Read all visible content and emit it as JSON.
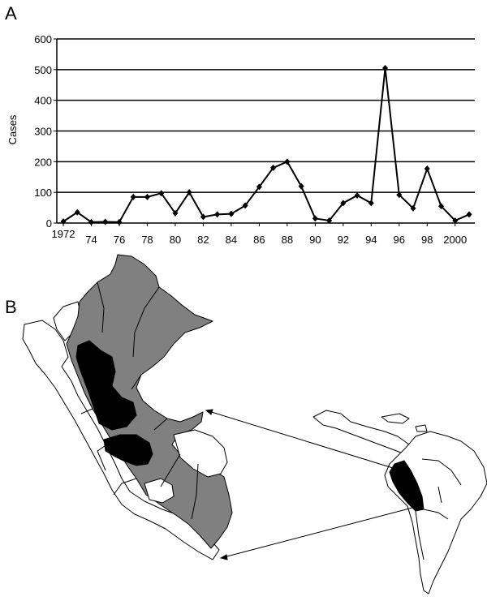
{
  "panels": {
    "a": "A",
    "b": "B"
  },
  "chart_data": {
    "type": "line",
    "title": "",
    "xlabel": "",
    "ylabel": "Cases",
    "ylim": [
      0,
      600
    ],
    "yticks": [
      0,
      100,
      200,
      300,
      400,
      500,
      600
    ],
    "xticks": [
      {
        "year": 1972,
        "label": "1972"
      },
      {
        "year": 1974,
        "label": "74"
      },
      {
        "year": 1976,
        "label": "76"
      },
      {
        "year": 1978,
        "label": "78"
      },
      {
        "year": 1980,
        "label": "80"
      },
      {
        "year": 1982,
        "label": "82"
      },
      {
        "year": 1984,
        "label": "84"
      },
      {
        "year": 1986,
        "label": "86"
      },
      {
        "year": 1988,
        "label": "88"
      },
      {
        "year": 1990,
        "label": "90"
      },
      {
        "year": 1992,
        "label": "92"
      },
      {
        "year": 1994,
        "label": "94"
      },
      {
        "year": 1996,
        "label": "96"
      },
      {
        "year": 1998,
        "label": "98"
      },
      {
        "year": 2000,
        "label": "2000"
      }
    ],
    "grid": "horizontal",
    "legend": "none",
    "series": [
      {
        "x": [
          1972,
          1973,
          1974,
          1975,
          1976,
          1977,
          1978,
          1979,
          1980,
          1981,
          1982,
          1983,
          1984,
          1985,
          1986,
          1987,
          1988,
          1989,
          1990,
          1991,
          1992,
          1993,
          1994,
          1995,
          1996,
          1997,
          1998,
          1999,
          2000,
          2001
        ],
        "values": [
          5,
          35,
          3,
          4,
          3,
          85,
          85,
          97,
          32,
          100,
          20,
          28,
          30,
          57,
          118,
          180,
          200,
          120,
          15,
          8,
          65,
          90,
          65,
          505,
          92,
          48,
          177,
          55,
          8,
          28
        ]
      }
    ]
  },
  "map": {
    "fill_colors": {
      "endemic_region": "#808080",
      "high_incidence": "#000000",
      "other": "#ffffff",
      "outline": "#000000"
    }
  }
}
